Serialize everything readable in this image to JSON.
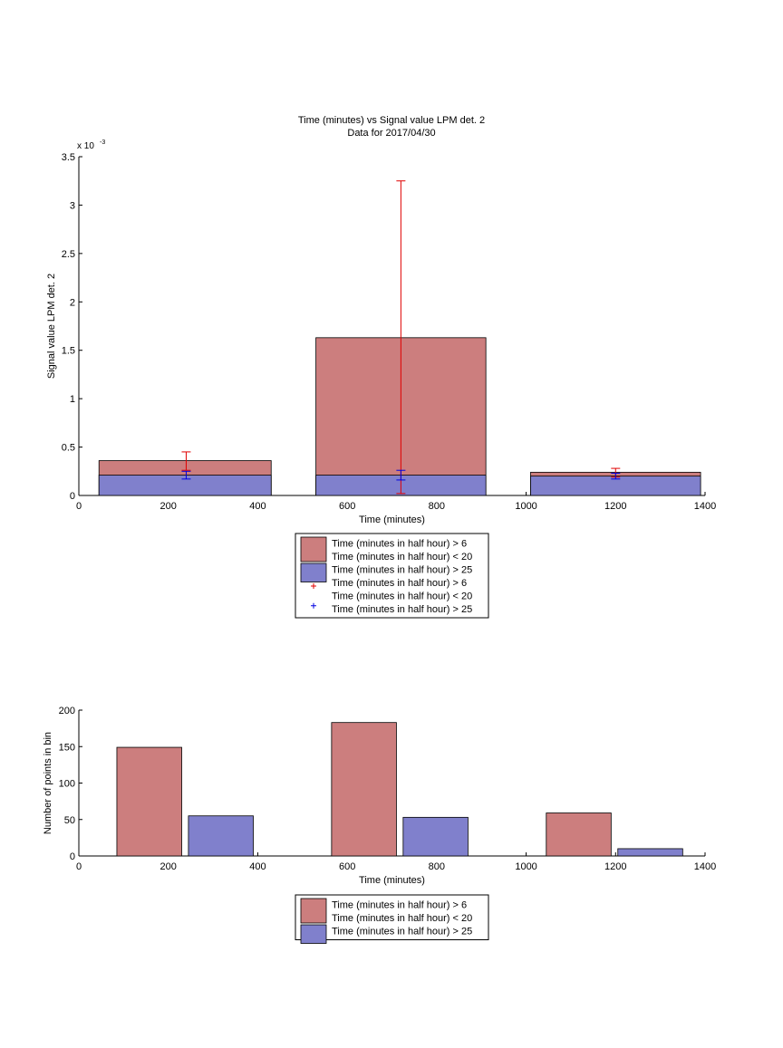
{
  "chart_data": [
    {
      "type": "bar",
      "title": "Time (minutes) vs Signal value LPM det. 2",
      "subtitle": "Data for 2017/04/30",
      "xlabel": "Time (minutes)",
      "ylabel": "Signal value LPM det. 2",
      "y_exponent_label": "x 10",
      "y_exponent_power": "-3",
      "xlim": [
        0,
        1400
      ],
      "ylim": [
        0,
        0.0035
      ],
      "x_ticks": [
        "0",
        "200",
        "400",
        "600",
        "800",
        "1000",
        "1200",
        "1400"
      ],
      "y_ticks": [
        "0",
        "0.5",
        "1",
        "1.5",
        "2",
        "2.5",
        "3",
        "3.5"
      ],
      "bins": [
        {
          "x_start": 45,
          "x_end": 430
        },
        {
          "x_start": 530,
          "x_end": 910
        },
        {
          "x_start": 1010,
          "x_end": 1390
        }
      ],
      "series": [
        {
          "name": "Time (minutes in half hour) > 6\nTime (minutes in half hour) < 20",
          "values": [
            0.00036,
            0.00163,
            0.00024
          ],
          "color": "#cc7e7e"
        },
        {
          "name": "Time (minutes in half hour) > 25",
          "values": [
            0.00021,
            0.00021,
            0.0002
          ],
          "color": "#8080cc"
        }
      ],
      "errorbars": [
        {
          "name": "Time (minutes in half hour) > 6\nTime (minutes in half hour) < 20",
          "color": "#e00000",
          "points": [
            {
              "x": 240,
              "low": 0.00026,
              "high": 0.00045
            },
            {
              "x": 720,
              "low": 2e-05,
              "high": 0.00325
            },
            {
              "x": 1200,
              "low": 0.00019,
              "high": 0.00028
            }
          ]
        },
        {
          "name": "Time (minutes in half hour) > 25",
          "color": "#0000e0",
          "points": [
            {
              "x": 240,
              "low": 0.00017,
              "high": 0.00025
            },
            {
              "x": 720,
              "low": 0.00016,
              "high": 0.00026
            },
            {
              "x": 1200,
              "low": 0.00017,
              "high": 0.00023
            }
          ]
        }
      ],
      "legend": [
        {
          "kind": "patch",
          "color": "#cc7e7e",
          "lines": [
            "Time (minutes in half hour) > 6",
            "Time (minutes in half hour) < 20"
          ]
        },
        {
          "kind": "patch",
          "color": "#8080cc",
          "lines": [
            "Time (minutes in half hour) > 25"
          ]
        },
        {
          "kind": "marker",
          "color": "#e00000",
          "lines": [
            "Time (minutes in half hour) > 6",
            "Time (minutes in half hour) < 20"
          ]
        },
        {
          "kind": "marker",
          "color": "#0000e0",
          "lines": [
            "Time (minutes in half hour) > 25"
          ]
        }
      ],
      "legend_placement": "below"
    },
    {
      "type": "bar",
      "xlabel": "Time (minutes)",
      "ylabel": "Number of points in bin",
      "xlim": [
        0,
        1400
      ],
      "ylim": [
        0,
        200
      ],
      "x_ticks": [
        "0",
        "200",
        "400",
        "600",
        "800",
        "1000",
        "1200",
        "1400"
      ],
      "y_ticks": [
        "0",
        "50",
        "100",
        "150",
        "200"
      ],
      "bars": [
        {
          "x_start": 85,
          "x_end": 230,
          "value": 149,
          "color": "#cc7e7e"
        },
        {
          "x_start": 245,
          "x_end": 390,
          "value": 55,
          "color": "#8080cc"
        },
        {
          "x_start": 565,
          "x_end": 710,
          "value": 183,
          "color": "#cc7e7e"
        },
        {
          "x_start": 725,
          "x_end": 870,
          "value": 53,
          "color": "#8080cc"
        },
        {
          "x_start": 1045,
          "x_end": 1190,
          "value": 59,
          "color": "#cc7e7e"
        },
        {
          "x_start": 1205,
          "x_end": 1350,
          "value": 10,
          "color": "#8080cc"
        }
      ],
      "legend": [
        {
          "kind": "patch",
          "color": "#cc7e7e",
          "lines": [
            "Time (minutes in half hour) > 6",
            "Time (minutes in half hour) < 20"
          ]
        },
        {
          "kind": "patch",
          "color": "#8080cc",
          "lines": [
            "Time (minutes in half hour) > 25"
          ]
        }
      ],
      "legend_placement": "below"
    }
  ]
}
